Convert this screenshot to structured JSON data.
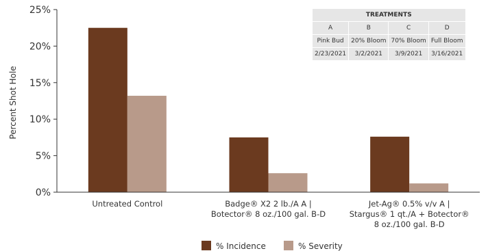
{
  "chart_data": {
    "type": "bar",
    "title": "",
    "xlabel": "",
    "ylabel": "Percent Shot Hole",
    "ylim": [
      0,
      25
    ],
    "yticks": [
      "0%",
      "5%",
      "10%",
      "15%",
      "20%",
      "25%"
    ],
    "categories": [
      [
        "Untreated Control"
      ],
      [
        "Badge® X2 2 lb./A A |",
        "Botector® 8 oz./100 gal. B-D"
      ],
      [
        "Jet-Ag® 0.5% v/v A |",
        "Stargus® 1 qt./A + Botector®",
        "8 oz./100 gal. B-D"
      ]
    ],
    "series": [
      {
        "name": "% Incidence",
        "color": "#6b3a1f",
        "values": [
          22.5,
          7.5,
          7.6
        ]
      },
      {
        "name": "% Severity",
        "color": "#b89a8a",
        "values": [
          13.2,
          2.6,
          1.2
        ]
      }
    ],
    "grid": false,
    "legend_position": "bottom-center"
  },
  "treatments": {
    "title": "TREATMENTS",
    "codes": [
      "A",
      "B",
      "C",
      "D"
    ],
    "stages": [
      "Pink Bud",
      "20% Bloom",
      "70% Bloom",
      "Full Bloom"
    ],
    "dates": [
      "2/23/2021",
      "3/2/2021",
      "3/9/2021",
      "3/16/2021"
    ]
  }
}
